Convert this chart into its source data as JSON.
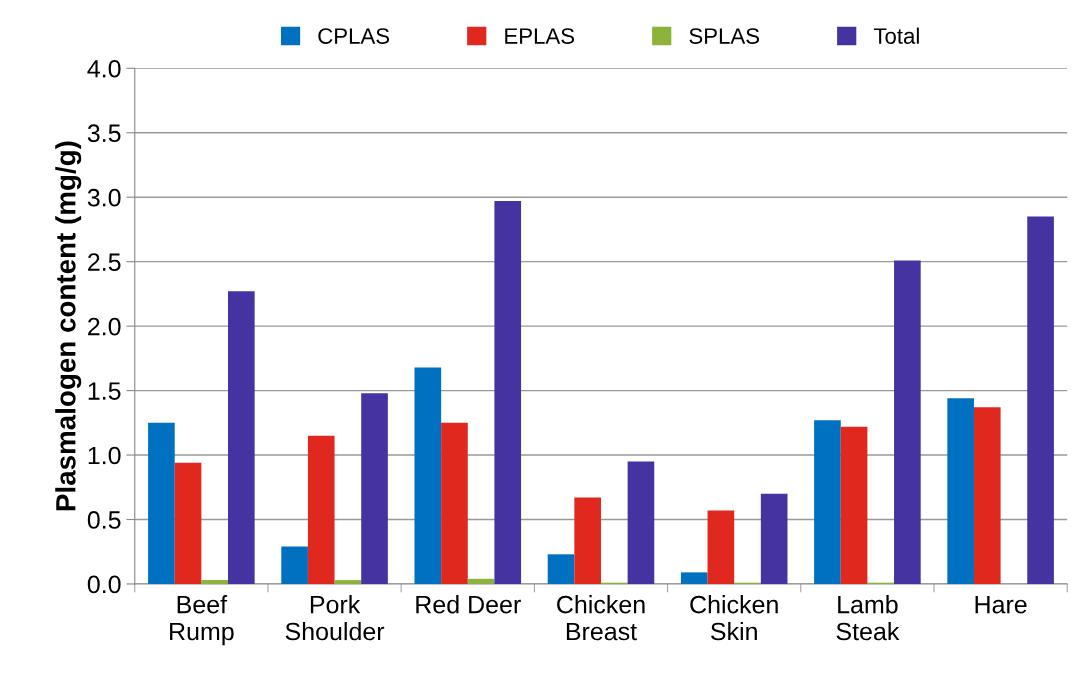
{
  "chart_data": {
    "type": "bar",
    "ylabel": "Plasmalogen content (mg/g)",
    "categories": [
      "Beef\nRump",
      "Pork\nShoulder",
      "Red Deer",
      "Chicken\nBreast",
      "Chicken\nSkin",
      "Lamb\nSteak",
      "Hare"
    ],
    "series": [
      {
        "name": "CPLAS",
        "color": "#0070c0",
        "values": [
          1.25,
          0.29,
          1.68,
          0.23,
          0.09,
          1.27,
          1.44
        ]
      },
      {
        "name": "EPLAS",
        "color": "#e0281e",
        "values": [
          0.94,
          1.15,
          1.25,
          0.67,
          0.57,
          1.22,
          1.37
        ]
      },
      {
        "name": "SPLAS",
        "color": "#8db33a",
        "values": [
          0.03,
          0.03,
          0.04,
          0.01,
          0.01,
          0.01,
          null
        ]
      },
      {
        "name": "Total",
        "color": "#4433a0",
        "values": [
          2.27,
          1.48,
          2.97,
          0.95,
          0.7,
          2.51,
          2.85
        ]
      }
    ],
    "ylim": [
      0,
      4
    ],
    "yticks": [
      {
        "value": 0,
        "label": "0.0"
      },
      {
        "value": 0.5,
        "label": "0.5"
      },
      {
        "value": 1,
        "label": "1.0"
      },
      {
        "value": 1.5,
        "label": "1.5"
      },
      {
        "value": 2,
        "label": "2.0"
      },
      {
        "value": 2.5,
        "label": "2.5"
      },
      {
        "value": 3,
        "label": "3.0"
      },
      {
        "value": 3.5,
        "label": "3.5"
      },
      {
        "value": 4,
        "label": "4.0"
      }
    ],
    "grid": "y",
    "legend": "top"
  }
}
